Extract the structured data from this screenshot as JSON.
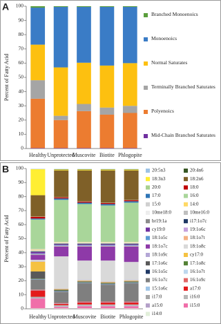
{
  "chart_data": [
    {
      "type": "bar",
      "stacked": true,
      "panel_label": "A",
      "ylabel": "Percent of Fatty Acid",
      "categories": [
        "Healthy",
        "Unprotected",
        "Muscovite",
        "Biotite",
        "Phlogopite"
      ],
      "ylim": [
        0,
        100
      ],
      "yticks": [
        0,
        10,
        20,
        30,
        40,
        50,
        60,
        70,
        80,
        90,
        100
      ],
      "series": [
        {
          "name": "Mid-Chain Branched Saturates",
          "color": "#7030a0",
          "values": [
            0.3,
            0.3,
            0.3,
            0.3,
            0.3
          ]
        },
        {
          "name": "Polyenoics",
          "color": "#ec7c30",
          "values": [
            34.7,
            19.7,
            26,
            23.5,
            24.7
          ]
        },
        {
          "name": "Terminally Branched Saturates",
          "color": "#a5a5a5",
          "values": [
            13,
            3,
            5,
            5,
            5
          ]
        },
        {
          "name": "Normal Saturates",
          "color": "#fdc010",
          "values": [
            25,
            34,
            29,
            29.5,
            30
          ]
        },
        {
          "name": "Monoenoics",
          "color": "#3a7cc6",
          "values": [
            26,
            42.5,
            39.2,
            41.2,
            39.5
          ]
        },
        {
          "name": "Branched Monoenoics",
          "color": "#5a9e3c",
          "values": [
            1,
            0.5,
            0.5,
            0.5,
            0.5
          ]
        }
      ]
    },
    {
      "type": "bar",
      "stacked": true,
      "stack_from": "last",
      "panel_label": "B",
      "ylabel": "Percent of Fatty Acid",
      "categories": [
        "Healthy",
        "Unprotected",
        "Muscovite",
        "Biotite",
        "Phlogopite"
      ],
      "ylim": [
        0,
        100
      ],
      "yticks": [
        0,
        10,
        20,
        30,
        40,
        50,
        60,
        70,
        80,
        90,
        100
      ],
      "series": [
        {
          "name": "20:5n3",
          "color": "#9dc3e6",
          "values": [
            0.1,
            0.2,
            0.2,
            0.2,
            0.2
          ]
        },
        {
          "name": "20:4n6",
          "color": "#375623",
          "values": [
            0.1,
            0.2,
            0.2,
            0.2,
            0.2
          ]
        },
        {
          "name": "18:3n3",
          "color": "#ffee33",
          "values": [
            18.5,
            0.6,
            0.6,
            0.6,
            0.6
          ]
        },
        {
          "name": "18:2n6",
          "color": "#7f6028",
          "values": [
            15,
            19,
            22,
            23,
            21
          ]
        },
        {
          "name": "20:0",
          "color": "#a9d18e",
          "values": [
            0.3,
            0.2,
            0.2,
            0.2,
            0.2
          ]
        },
        {
          "name": "18:0",
          "color": "#c00000",
          "values": [
            1.3,
            0.8,
            0.8,
            0.8,
            0.8
          ]
        },
        {
          "name": "17:0",
          "color": "#2e75b6",
          "values": [
            0.7,
            1,
            1,
            1,
            1
          ]
        },
        {
          "name": "16:0",
          "color": "#a9d69a",
          "values": [
            21,
            30,
            27,
            26,
            28
          ]
        },
        {
          "name": "15:0",
          "color": "#d0d0d0",
          "values": [
            0.5,
            0.2,
            0.2,
            0.2,
            0.2
          ]
        },
        {
          "name": "14:0",
          "color": "#ffd966",
          "values": [
            0.5,
            0.3,
            0.3,
            0.3,
            0.3
          ]
        },
        {
          "name": "10me18:0",
          "color": "#ededed",
          "values": [
            0.3,
            0.3,
            0.3,
            0.3,
            0.3
          ]
        },
        {
          "name": "10me16:0",
          "color": "#bfbfbf",
          "values": [
            0.3,
            0.3,
            0.3,
            0.3,
            0.3
          ]
        },
        {
          "name": "br19:1a",
          "color": "#8c8c8c",
          "values": [
            0.3,
            0.3,
            0.3,
            0.3,
            0.3
          ]
        },
        {
          "name": "i17:1o7c",
          "color": "#1f3864",
          "values": [
            0.3,
            0.3,
            0.3,
            0.3,
            0.3
          ]
        },
        {
          "name": "cy19:0",
          "color": "#7030a0",
          "values": [
            1,
            0.5,
            0.5,
            0.5,
            0.5
          ]
        },
        {
          "name": "19:1o6c",
          "color": "#c5a0dc",
          "values": [
            0.3,
            0.3,
            0.3,
            0.3,
            0.3
          ]
        },
        {
          "name": "18:1o5c",
          "color": "#5b9bd5",
          "values": [
            0.5,
            0.5,
            0.5,
            0.5,
            0.5
          ]
        },
        {
          "name": "18:1o7t",
          "color": "#f4b183",
          "values": [
            0.3,
            0.3,
            0.3,
            0.3,
            0.3
          ]
        },
        {
          "name": "18:1o7c",
          "color": "#8e3aa8",
          "values": [
            3.5,
            7,
            10,
            10,
            11
          ]
        },
        {
          "name": "18:1o8c",
          "color": "#d9d9d9",
          "values": [
            1,
            23,
            14,
            15,
            13
          ]
        },
        {
          "name": "18:1o9c",
          "color": "#b4a7d6",
          "values": [
            0.3,
            0.3,
            0.3,
            0.3,
            0.3
          ]
        },
        {
          "name": "cy17:0",
          "color": "#f5c242",
          "values": [
            7,
            0.5,
            0.5,
            0.5,
            0.5
          ]
        },
        {
          "name": "17:1o6c",
          "color": "#595959",
          "values": [
            5,
            0.5,
            0.5,
            0.5,
            0.5
          ]
        },
        {
          "name": "17:1o8c",
          "color": "#548235",
          "values": [
            0.3,
            0.3,
            0.3,
            0.3,
            0.3
          ]
        },
        {
          "name": "16:1o5c",
          "color": "#203864",
          "values": [
            0.3,
            0.3,
            0.3,
            0.3,
            0.3
          ]
        },
        {
          "name": "16:1o7t",
          "color": "#bdd7ee",
          "values": [
            0.3,
            0.3,
            0.3,
            0.3,
            0.3
          ]
        },
        {
          "name": "16:1o7c",
          "color": "#7f7f7f",
          "values": [
            7,
            8,
            13,
            12,
            13
          ]
        },
        {
          "name": "16:1o9c",
          "color": "#e06666",
          "values": [
            0.3,
            0.3,
            0.3,
            0.3,
            0.3
          ]
        },
        {
          "name": "15:1o6c",
          "color": "#9fc5e8",
          "values": [
            0.3,
            0.3,
            0.3,
            0.3,
            0.3
          ]
        },
        {
          "name": "a17:0",
          "color": "#e31a1c",
          "values": [
            4.5,
            1,
            1.5,
            1.5,
            1.5
          ]
        },
        {
          "name": "i17:0",
          "color": "#a6a6a6",
          "values": [
            0.5,
            0.5,
            0.5,
            0.5,
            0.5
          ]
        },
        {
          "name": "i16:0",
          "color": "#b7b7b7",
          "values": [
            0.5,
            0.5,
            0.5,
            0.5,
            0.5
          ]
        },
        {
          "name": "a15:0",
          "color": "#b4a0c8",
          "values": [
            0.3,
            0.3,
            0.3,
            0.3,
            0.3
          ]
        },
        {
          "name": "i15:0",
          "color": "#f06ea9",
          "values": [
            7,
            1,
            1.5,
            1.5,
            1.5
          ]
        },
        {
          "name": "i14:0",
          "color": "#e2efda",
          "values": [
            0.3,
            0.3,
            0.3,
            0.3,
            0.3
          ]
        }
      ]
    }
  ]
}
